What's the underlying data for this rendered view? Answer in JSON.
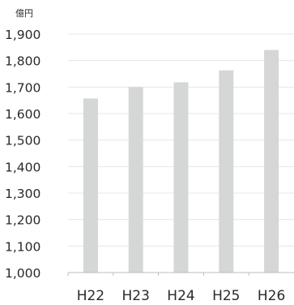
{
  "chart_data": {
    "type": "bar",
    "unit_label": "億円",
    "categories": [
      "H22",
      "H23",
      "H24",
      "H25",
      "H26"
    ],
    "values": [
      1657,
      1700,
      1718,
      1763,
      1840
    ],
    "ylim": [
      1000,
      1900
    ],
    "yticks": [
      1000,
      1100,
      1200,
      1300,
      1400,
      1500,
      1600,
      1700,
      1800,
      1900
    ],
    "ytick_labels": [
      "1,000",
      "1,100",
      "1,200",
      "1,300",
      "1,400",
      "1,500",
      "1,600",
      "1,700",
      "1,800",
      "1,900"
    ],
    "grid": true,
    "colors": {
      "bar": "#d4d7d6",
      "grid": "#e7e7e7",
      "axis": "#bdbdbd",
      "text": "#2a2a2a"
    }
  }
}
